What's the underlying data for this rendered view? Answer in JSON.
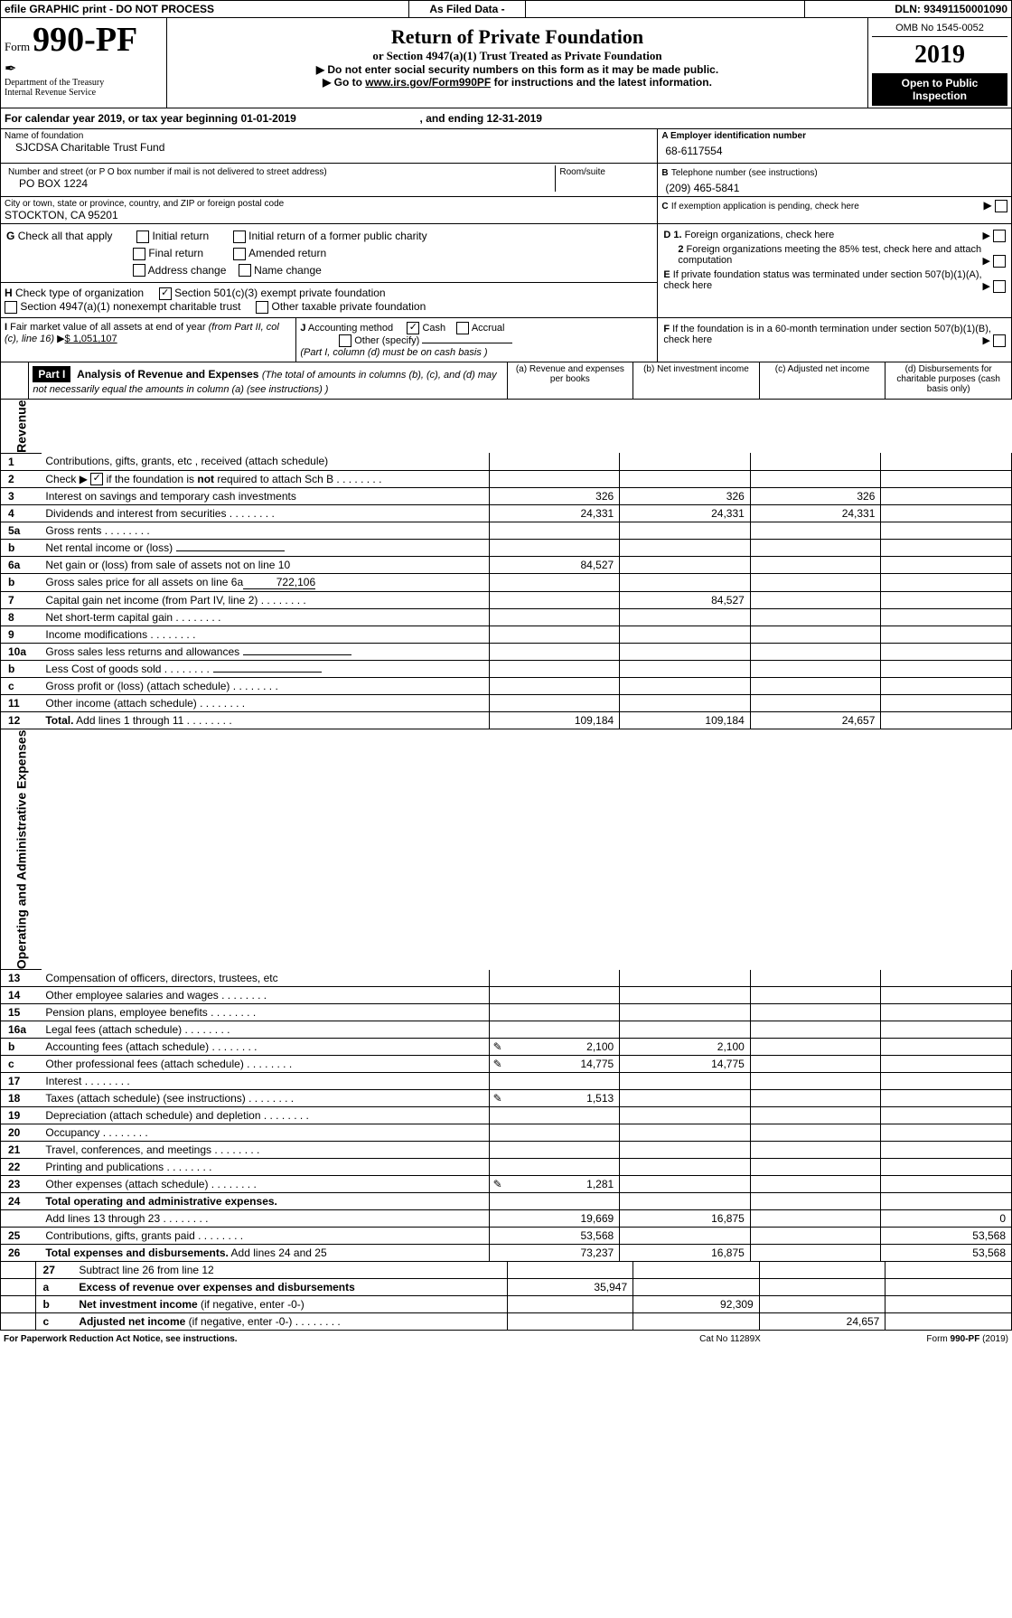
{
  "header": {
    "efile": "efile GRAPHIC print - DO NOT PROCESS",
    "asfiled": "As Filed Data -",
    "dln": "DLN: 93491150001090",
    "omb": "OMB No 1545-0052",
    "form": "Form",
    "formnum": "990-PF",
    "dept": "Department of the Treasury",
    "irs": "Internal Revenue Service",
    "title": "Return of Private Foundation",
    "subtitle": "or Section 4947(a)(1) Trust Treated as Private Foundation",
    "note1": "Do not enter social security numbers on this form as it may be made public.",
    "note2_a": "Go to ",
    "note2_link": "www.irs.gov/Form990PF",
    "note2_b": " for instructions and the latest information.",
    "year": "2019",
    "open": "Open to Public Inspection"
  },
  "period": {
    "label_a": "For calendar year 2019, or tax year beginning ",
    "begin": "01-01-2019",
    "label_b": ", and ending ",
    "end": "12-31-2019"
  },
  "entity": {
    "name_lbl": "Name of foundation",
    "name": "SJCDSA Charitable Trust Fund",
    "addr_lbl": "Number and street (or P O  box number if mail is not delivered to street address)",
    "addr": "PO BOX 1224",
    "room_lbl": "Room/suite",
    "city_lbl": "City or town, state or province, country, and ZIP or foreign postal code",
    "city": "STOCKTON, CA  95201",
    "A_lbl": "A Employer identification number",
    "A": "68-6117554",
    "B_lbl_a": "B",
    "B_lbl_b": " Telephone number (see instructions)",
    "B": "(209) 465-5841",
    "C_lbl": "C",
    "C_txt": " If exemption application is pending, check here"
  },
  "checks": {
    "G": "G",
    "G_txt": " Check all that apply",
    "initial_return": "Initial return",
    "initial_former": "Initial return of a former public charity",
    "final_return": "Final return",
    "amended": "Amended return",
    "addr_change": "Address change",
    "name_change": "Name change",
    "H": "H",
    "H_txt": " Check type of organization",
    "sec501": "Section 501(c)(3) exempt private foundation",
    "sec4947": "Section 4947(a)(1) nonexempt charitable trust",
    "other_tax": "Other taxable private foundation",
    "D1": "D 1.",
    "D1_txt": " Foreign organizations, check here",
    "D2": "2",
    "D2_txt": " Foreign organizations meeting the 85% test, check here and attach computation",
    "E": "E",
    "E_txt": " If private foundation status was terminated under section 507(b)(1)(A), check here",
    "F": "F",
    "F_txt": " If the foundation is in a 60-month termination under section 507(b)(1)(B), check here",
    "I": "I",
    "I_txt": " Fair market value of all assets at end of year ",
    "I_txt2": "(from Part II, col  (c), line 16)",
    "I_amt": "$  1,051,107",
    "J": "J",
    "J_txt": " Accounting method",
    "cash": "Cash",
    "accrual": "Accrual",
    "other_spec": "Other (specify)",
    "col_d_note": "(Part I, column (d) must be on cash basis )"
  },
  "part1": {
    "title": "Part I",
    "heading": "Analysis of Revenue and Expenses",
    "heading_note": " (The total of amounts in columns (b), (c), and (d) may not necessarily equal the amounts in column (a) (see instructions) )",
    "col_a": "(a)   Revenue and expenses per books",
    "col_b": "(b)  Net investment income",
    "col_c": "(c)  Adjusted net income",
    "col_d": "(d)  Disbursements for charitable purposes (cash basis only)"
  },
  "sidelabels": {
    "revenue": "Revenue",
    "expenses": "Operating and Administrative Expenses"
  },
  "rows": [
    {
      "n": "1",
      "label": "Contributions, gifts, grants, etc , received (attach schedule)",
      "a": "",
      "b": "",
      "c": "",
      "d": ""
    },
    {
      "n": "2",
      "label": "Check ▶ ☑ if the foundation is **not** required to attach Sch  B",
      "dots": true,
      "bold": true
    },
    {
      "n": "3",
      "label": "Interest on savings and temporary cash investments",
      "a": "326",
      "b": "326",
      "c": "326",
      "d": ""
    },
    {
      "n": "4",
      "label": "Dividends and interest from securities",
      "dots": true,
      "a": "24,331",
      "b": "24,331",
      "c": "24,331",
      "d": ""
    },
    {
      "n": "5a",
      "label": "Gross rents",
      "dots": true
    },
    {
      "n": "b",
      "label": "Net rental income or (loss)",
      "line": true
    },
    {
      "n": "6a",
      "label": "Net gain or (loss) from sale of assets not on line 10",
      "a": "84,527"
    },
    {
      "n": "b",
      "label": "Gross sales price for all assets on line 6a",
      "inline": "722,106"
    },
    {
      "n": "7",
      "label": "Capital gain net income (from Part IV, line 2)",
      "dots": true,
      "b": "84,527"
    },
    {
      "n": "8",
      "label": "Net short-term capital gain",
      "dots": true
    },
    {
      "n": "9",
      "label": "Income modifications",
      "dots": true
    },
    {
      "n": "10a",
      "label": "Gross sales less returns and allowances",
      "line": true
    },
    {
      "n": "b",
      "label": "Less  Cost of goods sold",
      "dots": true,
      "line": true
    },
    {
      "n": "c",
      "label": "Gross profit or (loss) (attach schedule)",
      "dots": true
    },
    {
      "n": "11",
      "label": "Other income (attach schedule)",
      "dots": true
    },
    {
      "n": "12",
      "label": "Total.",
      "label2": " Add lines 1 through 11",
      "dots": true,
      "bold": true,
      "a": "109,184",
      "b": "109,184",
      "c": "24,657",
      "d": ""
    }
  ],
  "exp_rows": [
    {
      "n": "13",
      "label": "Compensation of officers, directors, trustees, etc"
    },
    {
      "n": "14",
      "label": "Other employee salaries and wages",
      "dots": true
    },
    {
      "n": "15",
      "label": "Pension plans, employee benefits",
      "dots": true
    },
    {
      "n": "16a",
      "label": "Legal fees (attach schedule)",
      "dots": true
    },
    {
      "n": "b",
      "label": "Accounting fees (attach schedule)",
      "dots": true,
      "icon": true,
      "a": "2,100",
      "b": "2,100"
    },
    {
      "n": "c",
      "label": "Other professional fees (attach schedule)",
      "dots": true,
      "icon": true,
      "a": "14,775",
      "b": "14,775"
    },
    {
      "n": "17",
      "label": "Interest",
      "dots": true
    },
    {
      "n": "18",
      "label": "Taxes (attach schedule) (see instructions)",
      "dots": true,
      "icon": true,
      "a": "1,513"
    },
    {
      "n": "19",
      "label": "Depreciation (attach schedule) and depletion",
      "dots": true
    },
    {
      "n": "20",
      "label": "Occupancy",
      "dots": true
    },
    {
      "n": "21",
      "label": "Travel, conferences, and meetings",
      "dots": true
    },
    {
      "n": "22",
      "label": "Printing and publications",
      "dots": true
    },
    {
      "n": "23",
      "label": "Other expenses (attach schedule)",
      "dots": true,
      "icon": true,
      "a": "1,281"
    },
    {
      "n": "24",
      "label": "Total operating and administrative expenses.",
      "bold": true
    },
    {
      "n": "",
      "label": "Add lines 13 through 23",
      "dots": true,
      "a": "19,669",
      "b": "16,875",
      "d": "0"
    },
    {
      "n": "25",
      "label": "Contributions, gifts, grants paid",
      "dots": true,
      "a": "53,568",
      "d": "53,568"
    },
    {
      "n": "26",
      "label": "Total expenses and disbursements.",
      "label2": " Add lines 24 and 25",
      "bold": true,
      "a": "73,237",
      "b": "16,875",
      "d": "53,568"
    }
  ],
  "bottom_rows": [
    {
      "n": "27",
      "label": "Subtract line 26 from line 12"
    },
    {
      "n": "a",
      "label": "Excess of revenue over expenses and disbursements",
      "bold": true,
      "a": "35,947"
    },
    {
      "n": "b",
      "label": "Net investment income",
      "label2": " (if negative, enter -0-)",
      "bold": true,
      "b": "92,309"
    },
    {
      "n": "c",
      "label": "Adjusted net income",
      "label2": " (if negative, enter -0-)",
      "bold": true,
      "dots": true,
      "c": "24,657"
    }
  ],
  "footer": {
    "left": "For Paperwork Reduction Act Notice, see instructions.",
    "center": "Cat  No  11289X",
    "right": "Form ",
    "right_b": "990-PF",
    "right_y": " (2019)"
  },
  "colors": {
    "headerbg": "#000000",
    "text": "#000000"
  }
}
